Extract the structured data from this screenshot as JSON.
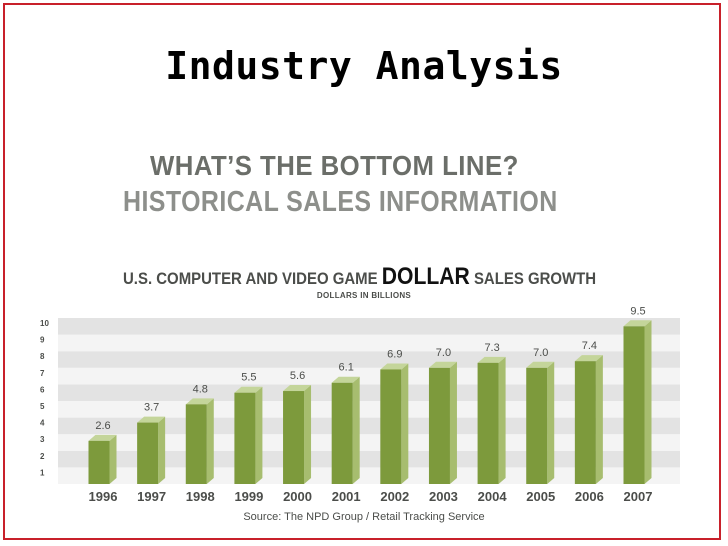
{
  "slide": {
    "title": "Industry Analysis",
    "headline": "WHAT’S THE BOTTOM LINE?",
    "subheadline": "HISTORICAL SALES INFORMATION"
  },
  "colors": {
    "frame": "#c8202a",
    "bar_front": "#7d9a3c",
    "bar_side": "#a7bd6f",
    "bar_top": "#c4d59a",
    "band_dark": "#e3e3e3",
    "band_light": "#f4f4f4"
  },
  "chart_data": {
    "type": "bar",
    "title_prefix": "U.S. COMPUTER AND VIDEO GAME",
    "title_highlight": "DOLLAR",
    "title_suffix": "SALES GROWTH",
    "ylabel": "DOLLARS IN BILLIONS",
    "source": "Source: The NPD Group / Retail Tracking Service",
    "categories": [
      "1996",
      "1997",
      "1998",
      "1999",
      "2000",
      "2001",
      "2002",
      "2003",
      "2004",
      "2005",
      "2006",
      "2007"
    ],
    "values": [
      2.6,
      3.7,
      4.8,
      5.5,
      5.6,
      6.1,
      6.9,
      7.0,
      7.3,
      7.0,
      7.4,
      9.5
    ],
    "value_labels": [
      "2.6",
      "3.7",
      "4.8",
      "5.5",
      "5.6",
      "6.1",
      "6.9",
      "7.0",
      "7.3",
      "7.0",
      "7.4",
      "9.5"
    ],
    "yticks": [
      "1",
      "2",
      "3",
      "4",
      "5",
      "6",
      "7",
      "8",
      "9",
      "10"
    ],
    "ylim": [
      0,
      10
    ],
    "grid": true,
    "legend": "none"
  }
}
